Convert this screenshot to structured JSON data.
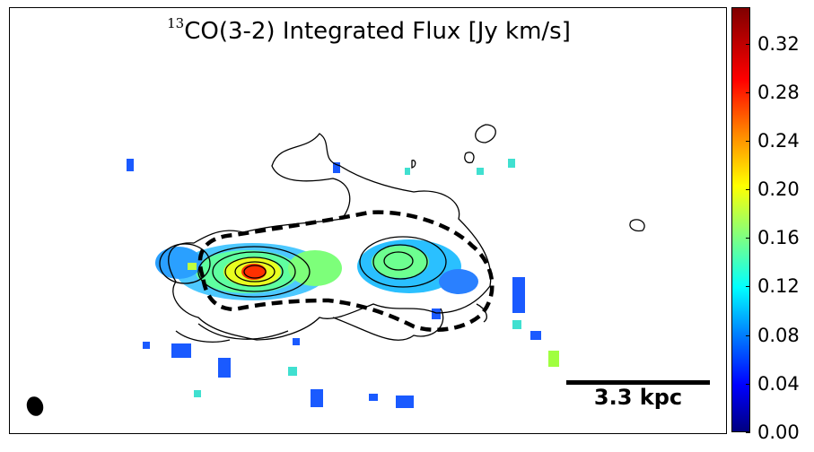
{
  "title_sup": "13",
  "title_main": "CO(3-2) Integrated Flux [Jy km/s]",
  "scalebar_label": "3.3 kpc",
  "colorbar": {
    "ticks": [
      "0.32",
      "0.28",
      "0.24",
      "0.20",
      "0.16",
      "0.12",
      "0.08",
      "0.04",
      "0.00"
    ],
    "tick_values": [
      0.32,
      0.28,
      0.24,
      0.2,
      0.16,
      0.12,
      0.08,
      0.04,
      0.0
    ],
    "colormap": "jet",
    "range": [
      0.0,
      0.35
    ]
  }
}
